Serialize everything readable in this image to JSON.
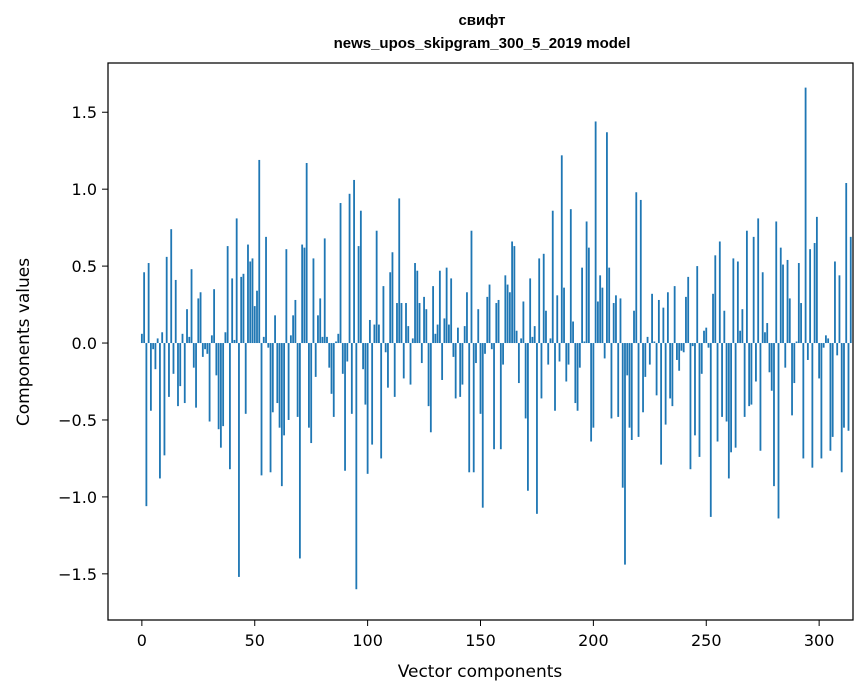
{
  "chart_data": {
    "type": "bar",
    "title_line1": "свифт",
    "title_line2": "news_upos_skipgram_300_5_2019 model",
    "xlabel": "Vector components",
    "ylabel": "Components values",
    "xlim": [
      -15,
      315
    ],
    "ylim": [
      -1.8,
      1.82
    ],
    "xticks": [
      0,
      50,
      100,
      150,
      200,
      250,
      300
    ],
    "xtick_labels": [
      "0",
      "50",
      "100",
      "150",
      "200",
      "250",
      "300"
    ],
    "yticks": [
      -1.5,
      -1.0,
      -0.5,
      0.0,
      0.5,
      1.0,
      1.5
    ],
    "ytick_labels": [
      "−1.5",
      "−1.0",
      "−0.5",
      "0.0",
      "0.5",
      "1.0",
      "1.5"
    ],
    "bar_color": "#1f77b4",
    "values": [
      0.06,
      0.46,
      -1.06,
      0.52,
      -0.44,
      -0.04,
      -0.17,
      0.03,
      -0.88,
      0.07,
      -0.73,
      0.56,
      -0.35,
      0.74,
      -0.2,
      0.41,
      -0.41,
      -0.28,
      0.06,
      -0.39,
      0.22,
      0.04,
      0.48,
      -0.16,
      -0.42,
      0.29,
      0.33,
      -0.09,
      -0.04,
      -0.07,
      -0.51,
      0.05,
      0.35,
      -0.21,
      -0.56,
      -0.68,
      -0.54,
      0.07,
      0.63,
      -0.82,
      0.42,
      0.02,
      0.81,
      -1.52,
      0.43,
      0.45,
      -0.46,
      0.64,
      0.53,
      0.55,
      0.24,
      0.34,
      1.19,
      -0.86,
      0.04,
      0.69,
      -0.03,
      -0.84,
      -0.45,
      0.18,
      -0.39,
      -0.55,
      -0.93,
      -0.6,
      0.61,
      -0.5,
      0.05,
      0.18,
      0.28,
      -0.48,
      -1.4,
      0.64,
      0.62,
      1.17,
      -0.55,
      -0.65,
      0.55,
      -0.22,
      0.18,
      0.29,
      0.04,
      0.68,
      0.04,
      -0.16,
      -0.33,
      -0.48,
      0.01,
      0.06,
      0.91,
      -0.2,
      -0.83,
      -0.12,
      0.97,
      -0.46,
      1.06,
      -1.6,
      0.63,
      0.86,
      -0.17,
      -0.4,
      -0.85,
      0.15,
      -0.66,
      0.12,
      0.73,
      0.12,
      -0.75,
      0.37,
      -0.06,
      -0.29,
      0.46,
      0.59,
      -0.35,
      0.26,
      0.94,
      0.26,
      -0.23,
      0.26,
      0.11,
      -0.27,
      0.03,
      0.52,
      0.47,
      0.26,
      -0.13,
      0.3,
      0.22,
      -0.41,
      -0.58,
      0.37,
      0.06,
      0.12,
      0.47,
      -0.24,
      0.16,
      0.49,
      0.12,
      0.42,
      -0.09,
      -0.36,
      0.1,
      -0.35,
      -0.27,
      0.11,
      0.33,
      -0.84,
      0.73,
      -0.84,
      -0.13,
      0.22,
      -0.46,
      -1.07,
      -0.07,
      0.3,
      0.38,
      -0.04,
      -0.69,
      0.26,
      0.28,
      -0.69,
      -0.14,
      0.44,
      0.38,
      0.33,
      0.66,
      0.63,
      0.08,
      -0.26,
      0.03,
      0.27,
      -0.49,
      -0.96,
      0.42,
      0.04,
      0.11,
      -1.11,
      0.55,
      -0.36,
      0.58,
      0.21,
      -0.14,
      0.03,
      0.86,
      -0.44,
      0.31,
      -0.12,
      1.22,
      0.36,
      -0.25,
      -0.14,
      0.87,
      0.14,
      -0.39,
      -0.44,
      -0.16,
      0.49,
      0.01,
      0.79,
      0.62,
      -0.64,
      -0.55,
      1.44,
      0.27,
      0.44,
      0.36,
      -0.1,
      1.37,
      0.49,
      -0.49,
      0.26,
      0.31,
      -0.48,
      0.29,
      -0.94,
      -1.44,
      -0.21,
      -0.55,
      -0.63,
      0.21,
      0.98,
      -0.61,
      0.93,
      -0.45,
      -0.22,
      0.04,
      -0.14,
      0.32,
      0.01,
      -0.34,
      0.28,
      -0.79,
      0.23,
      -0.53,
      0.33,
      -0.36,
      -0.41,
      0.37,
      -0.11,
      -0.18,
      -0.05,
      -0.06,
      0.3,
      0.43,
      -0.82,
      -0.02,
      -0.6,
      0.5,
      -0.74,
      -0.2,
      0.08,
      0.1,
      -0.03,
      -1.13,
      0.32,
      0.57,
      -0.64,
      0.66,
      -0.48,
      0.21,
      -0.51,
      -0.88,
      -0.71,
      0.55,
      -0.68,
      0.53,
      0.08,
      0.22,
      -0.48,
      0.73,
      -0.41,
      -0.4,
      0.69,
      -0.25,
      0.81,
      -0.7,
      0.46,
      0.07,
      0.13,
      -0.19,
      -0.31,
      -0.93,
      0.79,
      -1.14,
      0.62,
      0.51,
      -0.16,
      0.54,
      0.29,
      -0.47,
      -0.26,
      0.01,
      0.52,
      0.26,
      -0.75,
      1.66,
      -0.11,
      0.61,
      -0.81,
      0.65,
      0.82,
      -0.23,
      -0.75,
      -0.03,
      0.05,
      0.03,
      -0.7,
      -0.61,
      0.53,
      -0.08,
      0.44,
      -0.84,
      -0.55,
      1.04,
      -0.57,
      0.69
    ]
  }
}
